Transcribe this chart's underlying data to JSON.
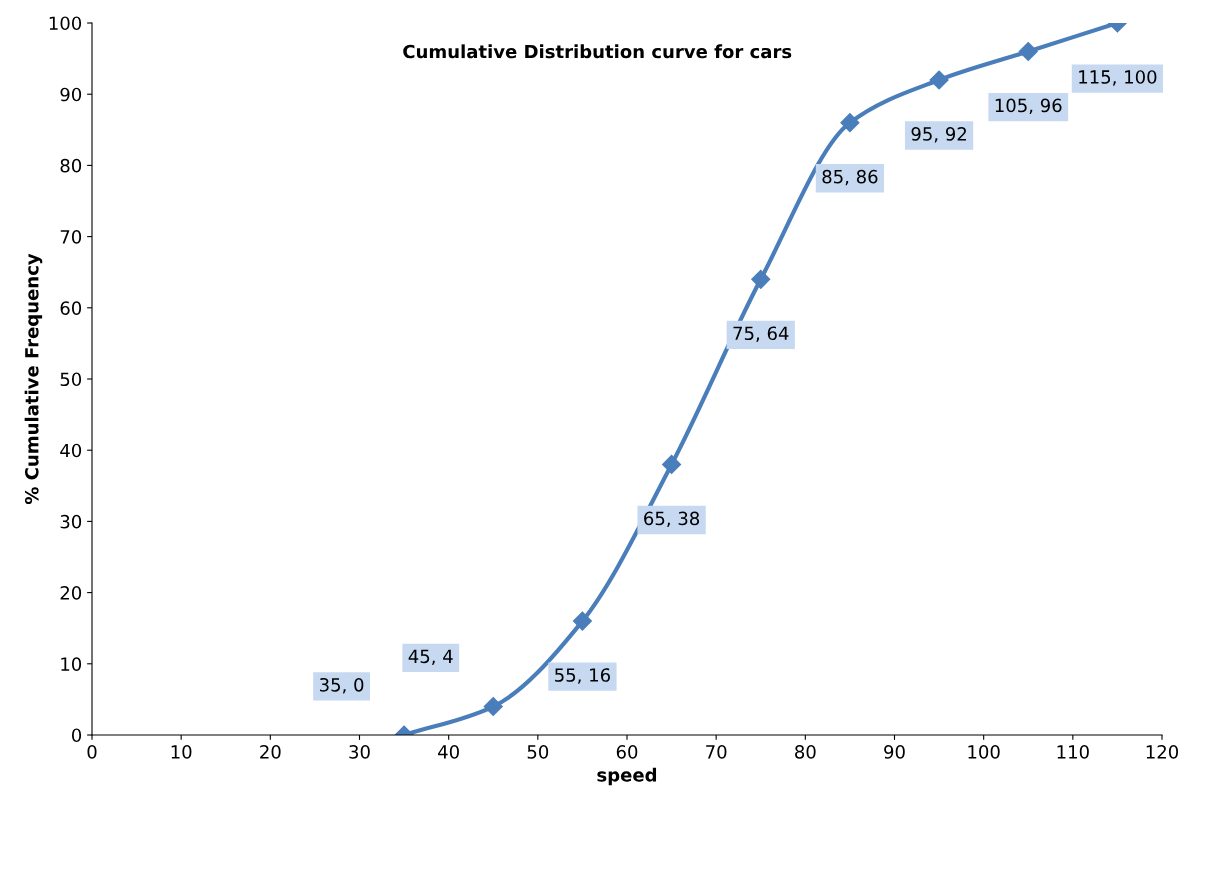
{
  "chart_data": {
    "type": "line",
    "title": "Cumulative Distribution curve for cars",
    "xlabel": "speed",
    "ylabel": "% Cumulative Frequency",
    "x": [
      35,
      45,
      55,
      65,
      75,
      85,
      95,
      105,
      115
    ],
    "series": [
      {
        "color": "#4a7ebb",
        "values": [
          0,
          4,
          16,
          38,
          64,
          86,
          92,
          96,
          100
        ],
        "value_labels": [
          "35, 0",
          "45, 4",
          "55, 16",
          "65, 38",
          "75, 64",
          "85, 86",
          "95, 92",
          "105, 96",
          "115, 100"
        ]
      }
    ],
    "xlim": [
      0,
      120
    ],
    "xticks": [
      0,
      10,
      20,
      30,
      40,
      50,
      60,
      70,
      80,
      90,
      100,
      110,
      120
    ],
    "ylim": [
      0,
      100
    ],
    "yticks": [
      0,
      10,
      20,
      30,
      40,
      50,
      60,
      70,
      80,
      90,
      100
    ],
    "grid": false,
    "marker": "diamond",
    "line_style": "solid"
  }
}
